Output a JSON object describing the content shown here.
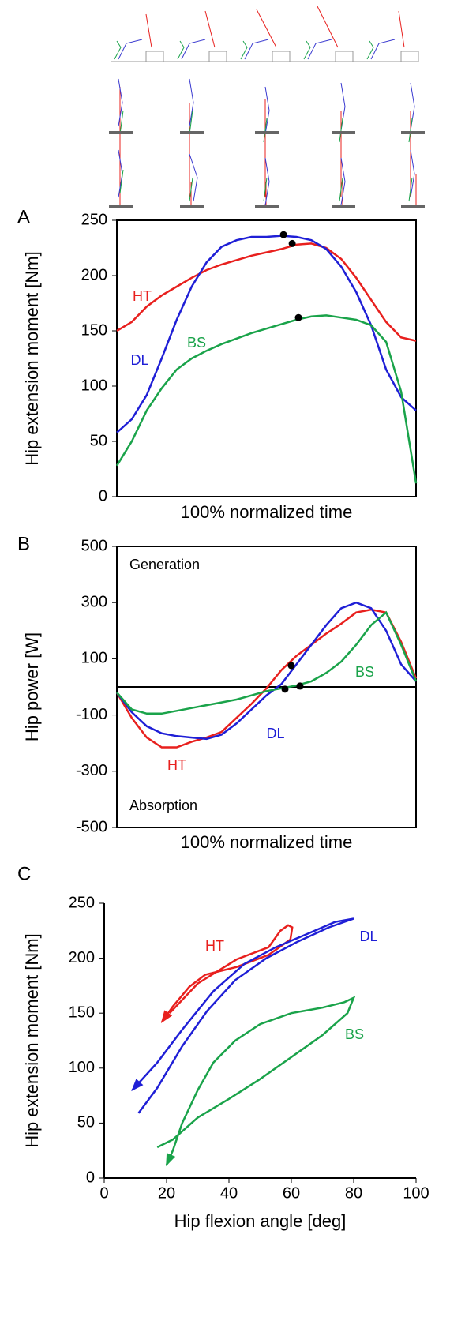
{
  "chart_data": [
    {
      "type": "line",
      "panel": "A",
      "ylabel": "Hip extension moment  [Nm]",
      "xlabel": "100% normalized time",
      "xlim": [
        0,
        100
      ],
      "ylim": [
        0,
        250
      ],
      "yticks": [
        0,
        50,
        100,
        150,
        200,
        250
      ],
      "frame": true,
      "x": [
        0,
        5,
        10,
        15,
        20,
        25,
        30,
        35,
        40,
        45,
        50,
        55,
        60,
        65,
        70,
        75,
        80,
        85,
        90,
        95,
        100
      ],
      "series": [
        {
          "name": "HT",
          "color": "#e8201e",
          "values": [
            150,
            158,
            172,
            182,
            190,
            198,
            205,
            210,
            214,
            218,
            221,
            224,
            228,
            229,
            225,
            215,
            198,
            178,
            158,
            144,
            141
          ]
        },
        {
          "name": "DL",
          "color": "#1f1fd6",
          "values": [
            58,
            70,
            92,
            125,
            160,
            190,
            212,
            226,
            232,
            235,
            235,
            236,
            235,
            232,
            224,
            208,
            185,
            155,
            115,
            90,
            78
          ]
        },
        {
          "name": "BS",
          "color": "#1aa34a",
          "values": [
            28,
            50,
            78,
            98,
            115,
            125,
            132,
            138,
            143,
            148,
            152,
            156,
            160,
            163,
            164,
            162,
            160,
            155,
            140,
            95,
            12
          ]
        }
      ],
      "markers": {
        "x": [
          55.7,
          58.6,
          60.7
        ],
        "y": [
          237,
          229,
          162
        ]
      }
    },
    {
      "type": "line",
      "panel": "B",
      "ylabel": "Hip power [W]",
      "xlabel": "100% normalized time",
      "annotations": [
        "Generation",
        "Absorption"
      ],
      "zero_line": true,
      "frame": true,
      "xlim": [
        0,
        100
      ],
      "ylim": [
        -500,
        500
      ],
      "yticks": [
        -500,
        -300,
        -100,
        100,
        300,
        500
      ],
      "x": [
        0,
        5,
        10,
        15,
        20,
        25,
        30,
        35,
        40,
        45,
        50,
        55,
        60,
        65,
        70,
        75,
        80,
        85,
        90,
        95,
        100
      ],
      "series": [
        {
          "name": "HT",
          "color": "#e8201e",
          "values": [
            -20,
            -110,
            -180,
            -215,
            -215,
            -195,
            -180,
            -160,
            -110,
            -60,
            -5,
            60,
            110,
            150,
            190,
            225,
            265,
            275,
            265,
            160,
            30
          ]
        },
        {
          "name": "DL",
          "color": "#1f1fd6",
          "values": [
            -20,
            -90,
            -140,
            -165,
            -175,
            -180,
            -185,
            -170,
            -130,
            -80,
            -30,
            10,
            80,
            150,
            220,
            280,
            300,
            280,
            200,
            80,
            20
          ]
        },
        {
          "name": "BS",
          "color": "#1aa34a",
          "values": [
            -20,
            -80,
            -95,
            -95,
            -85,
            -75,
            -65,
            -55,
            -45,
            -30,
            -15,
            -5,
            5,
            20,
            50,
            90,
            150,
            220,
            265,
            150,
            20
          ]
        }
      ],
      "markers": {
        "x": [
          56.2,
          58.3,
          61.2
        ],
        "y": [
          -8,
          76,
          3
        ]
      }
    },
    {
      "type": "loop",
      "panel": "C",
      "ylabel": "Hip extension moment  [Nm]",
      "xlabel": "Hip flexion angle [deg]",
      "frame": false,
      "xlim": [
        0,
        100
      ],
      "xticks": [
        0,
        20,
        40,
        60,
        80,
        100
      ],
      "ylim": [
        0,
        250
      ],
      "yticks": [
        0,
        50,
        100,
        150,
        200,
        250
      ],
      "series": [
        {
          "name": "HT",
          "color": "#e8201e",
          "x": [
            21,
            30,
            42.5,
            52.7,
            56.5,
            59,
            60.3,
            59.7,
            52.7,
            42.5,
            32.4,
            27.3,
            22,
            18.5
          ],
          "values": [
            150,
            177,
            199,
            210,
            225,
            230,
            228,
            217,
            203,
            192,
            185,
            174,
            156,
            142
          ]
        },
        {
          "name": "DL",
          "color": "#1f1fd6",
          "x": [
            11,
            17,
            25,
            33,
            42,
            52,
            62,
            72,
            80,
            74,
            65,
            55,
            45,
            35,
            25,
            17,
            9
          ],
          "values": [
            59,
            82,
            120,
            152,
            180,
            200,
            215,
            228,
            236,
            233,
            222,
            210,
            195,
            170,
            135,
            105,
            80
          ]
        },
        {
          "name": "BS",
          "color": "#1aa34a",
          "x": [
            17,
            22,
            30,
            40,
            50,
            60,
            70,
            78,
            80,
            77,
            70,
            60,
            50,
            42,
            35,
            30,
            25,
            22,
            20
          ],
          "values": [
            28,
            35,
            55,
            72,
            90,
            110,
            130,
            150,
            164,
            160,
            155,
            150,
            140,
            125,
            105,
            80,
            50,
            25,
            12
          ]
        }
      ]
    }
  ]
}
